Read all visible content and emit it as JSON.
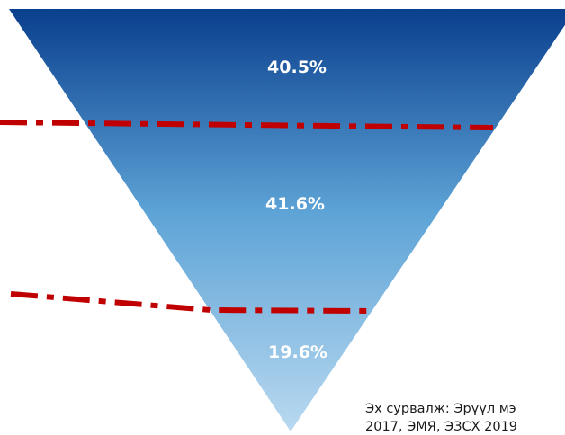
{
  "funnel": {
    "segments": [
      {
        "label": "40.5%",
        "value": 40.5
      },
      {
        "label": "41.6%",
        "value": 41.6
      },
      {
        "label": "19.6%",
        "value": 19.6
      }
    ],
    "colors": {
      "top": "#0a3f8e",
      "mid": "#5da3d6",
      "bottom": "#b9d9f0"
    },
    "divider_color": "#c00000"
  },
  "source": {
    "line1": "Эх сурвалж: Эрүүл мэ",
    "line2": "2017, ЭМЯ, ЭЗСХ 2019"
  }
}
